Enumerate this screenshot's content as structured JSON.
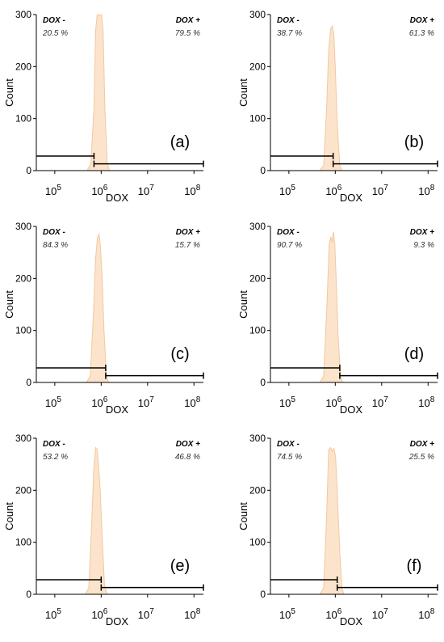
{
  "chart_data": [
    {
      "type": "area",
      "panel_label": "(a)",
      "xlabel": "DOX",
      "ylabel": "Count",
      "x_scale": "log",
      "xlim": [
        40000,
        160000000
      ],
      "ylim": [
        0,
        300
      ],
      "yticks": [
        "0",
        "100",
        "200",
        "300"
      ],
      "xtick_labels": [
        {
          "base": "10",
          "exp": "5",
          "value": 100000
        },
        {
          "base": "10",
          "exp": "6",
          "value": 1000000
        },
        {
          "base": "10",
          "exp": "7",
          "value": 10000000
        },
        {
          "base": "10",
          "exp": "8",
          "value": 100000000
        }
      ],
      "gates": [
        {
          "name": "DOX -",
          "percent": "20.5 %",
          "range": [
            40000,
            700000
          ],
          "y": 28
        },
        {
          "name": "DOX +",
          "percent": "79.5 %",
          "range": [
            700000,
            160000000
          ],
          "y": 13
        }
      ],
      "histogram": {
        "x": [
          500000,
          600000,
          700000,
          760000,
          820000,
          880000,
          950000,
          1020000,
          1100000,
          1200000,
          1350000,
          1500000
        ],
        "y": [
          0,
          15,
          120,
          270,
          300,
          300,
          298,
          300,
          270,
          120,
          15,
          0
        ]
      }
    },
    {
      "type": "area",
      "panel_label": "(b)",
      "xlabel": "DOX",
      "ylabel": "Count",
      "x_scale": "log",
      "xlim": [
        40000,
        160000000
      ],
      "ylim": [
        0,
        300
      ],
      "yticks": [
        "0",
        "100",
        "200",
        "300"
      ],
      "xtick_labels": [
        {
          "base": "10",
          "exp": "5",
          "value": 100000
        },
        {
          "base": "10",
          "exp": "6",
          "value": 1000000
        },
        {
          "base": "10",
          "exp": "7",
          "value": 10000000
        },
        {
          "base": "10",
          "exp": "8",
          "value": 100000000
        }
      ],
      "gates": [
        {
          "name": "DOX -",
          "percent": "38.7 %",
          "range": [
            40000,
            900000
          ],
          "y": 28
        },
        {
          "name": "DOX +",
          "percent": "61.3 %",
          "range": [
            900000,
            160000000
          ],
          "y": 13
        }
      ],
      "histogram": {
        "x": [
          460000,
          560000,
          650000,
          720000,
          790000,
          860000,
          930000,
          1000000,
          1100000,
          1250000,
          1400000
        ],
        "y": [
          0,
          10,
          120,
          230,
          272,
          278,
          262,
          200,
          90,
          10,
          0
        ]
      }
    },
    {
      "type": "area",
      "panel_label": "(c)",
      "xlabel": "DOX",
      "ylabel": "Count",
      "x_scale": "log",
      "xlim": [
        40000,
        160000000
      ],
      "ylim": [
        0,
        300
      ],
      "yticks": [
        "0",
        "100",
        "200",
        "300"
      ],
      "xtick_labels": [
        {
          "base": "10",
          "exp": "5",
          "value": 100000
        },
        {
          "base": "10",
          "exp": "6",
          "value": 1000000
        },
        {
          "base": "10",
          "exp": "7",
          "value": 10000000
        },
        {
          "base": "10",
          "exp": "8",
          "value": 100000000
        }
      ],
      "gates": [
        {
          "name": "DOX -",
          "percent": "84.3 %",
          "range": [
            40000,
            1250000
          ],
          "y": 28
        },
        {
          "name": "DOX +",
          "percent": "15.7 %",
          "range": [
            1250000,
            160000000
          ],
          "y": 13
        }
      ],
      "histogram": {
        "x": [
          480000,
          580000,
          680000,
          760000,
          830000,
          900000,
          960000,
          1050000,
          1150000,
          1300000,
          1450000
        ],
        "y": [
          0,
          12,
          130,
          240,
          278,
          285,
          262,
          200,
          100,
          12,
          0
        ]
      }
    },
    {
      "type": "area",
      "panel_label": "(d)",
      "xlabel": "DOX",
      "ylabel": "Count",
      "x_scale": "log",
      "xlim": [
        40000,
        160000000
      ],
      "ylim": [
        0,
        300
      ],
      "yticks": [
        "0",
        "100",
        "200",
        "300"
      ],
      "xtick_labels": [
        {
          "base": "10",
          "exp": "5",
          "value": 100000
        },
        {
          "base": "10",
          "exp": "6",
          "value": 1000000
        },
        {
          "base": "10",
          "exp": "7",
          "value": 10000000
        },
        {
          "base": "10",
          "exp": "8",
          "value": 100000000
        }
      ],
      "gates": [
        {
          "name": "DOX -",
          "percent": "90.7 %",
          "range": [
            40000,
            1250000
          ],
          "y": 28
        },
        {
          "name": "DOX +",
          "percent": "9.3 %",
          "range": [
            1250000,
            160000000
          ],
          "y": 13
        }
      ],
      "histogram": {
        "x": [
          460000,
          560000,
          660000,
          740000,
          800000,
          860000,
          910000,
          980000,
          1050000,
          1150000,
          1300000,
          1450000
        ],
        "y": [
          0,
          12,
          150,
          265,
          280,
          270,
          290,
          265,
          190,
          90,
          10,
          0
        ]
      }
    },
    {
      "type": "area",
      "panel_label": "(e)",
      "xlabel": "DOX",
      "ylabel": "Count",
      "x_scale": "log",
      "xlim": [
        40000,
        160000000
      ],
      "ylim": [
        0,
        300
      ],
      "yticks": [
        "0",
        "100",
        "200",
        "300"
      ],
      "xtick_labels": [
        {
          "base": "10",
          "exp": "5",
          "value": 100000
        },
        {
          "base": "10",
          "exp": "6",
          "value": 1000000
        },
        {
          "base": "10",
          "exp": "7",
          "value": 10000000
        },
        {
          "base": "10",
          "exp": "8",
          "value": 100000000
        }
      ],
      "gates": [
        {
          "name": "DOX -",
          "percent": "53.2 %",
          "range": [
            40000,
            1000000
          ],
          "y": 28
        },
        {
          "name": "DOX +",
          "percent": "46.8 %",
          "range": [
            1000000,
            160000000
          ],
          "y": 13
        }
      ],
      "histogram": {
        "x": [
          450000,
          540000,
          620000,
          690000,
          760000,
          820000,
          880000,
          950000,
          1050000,
          1180000,
          1350000
        ],
        "y": [
          0,
          12,
          130,
          240,
          282,
          278,
          248,
          200,
          110,
          15,
          0
        ]
      }
    },
    {
      "type": "area",
      "panel_label": "(f)",
      "xlabel": "DOX",
      "ylabel": "Count",
      "x_scale": "log",
      "xlim": [
        40000,
        160000000
      ],
      "ylim": [
        0,
        300
      ],
      "yticks": [
        "0",
        "100",
        "200",
        "300"
      ],
      "xtick_labels": [
        {
          "base": "10",
          "exp": "5",
          "value": 100000
        },
        {
          "base": "10",
          "exp": "6",
          "value": 1000000
        },
        {
          "base": "10",
          "exp": "7",
          "value": 10000000
        },
        {
          "base": "10",
          "exp": "8",
          "value": 100000000
        }
      ],
      "gates": [
        {
          "name": "DOX -",
          "percent": "74.5 %",
          "range": [
            40000,
            1100000
          ],
          "y": 28
        },
        {
          "name": "DOX +",
          "percent": "25.5 %",
          "range": [
            1100000,
            160000000
          ],
          "y": 13
        }
      ],
      "histogram": {
        "x": [
          460000,
          560000,
          650000,
          720000,
          790000,
          860000,
          940000,
          1020000,
          1120000,
          1250000,
          1400000,
          1550000
        ],
        "y": [
          0,
          12,
          150,
          278,
          282,
          275,
          280,
          262,
          180,
          80,
          10,
          0
        ]
      }
    }
  ],
  "style": {
    "fill_color": "#fbe3c9",
    "stroke_color": "#f3c59a",
    "axis_color": "#000000",
    "text_color": "#000000",
    "percent_color": "#333333"
  }
}
